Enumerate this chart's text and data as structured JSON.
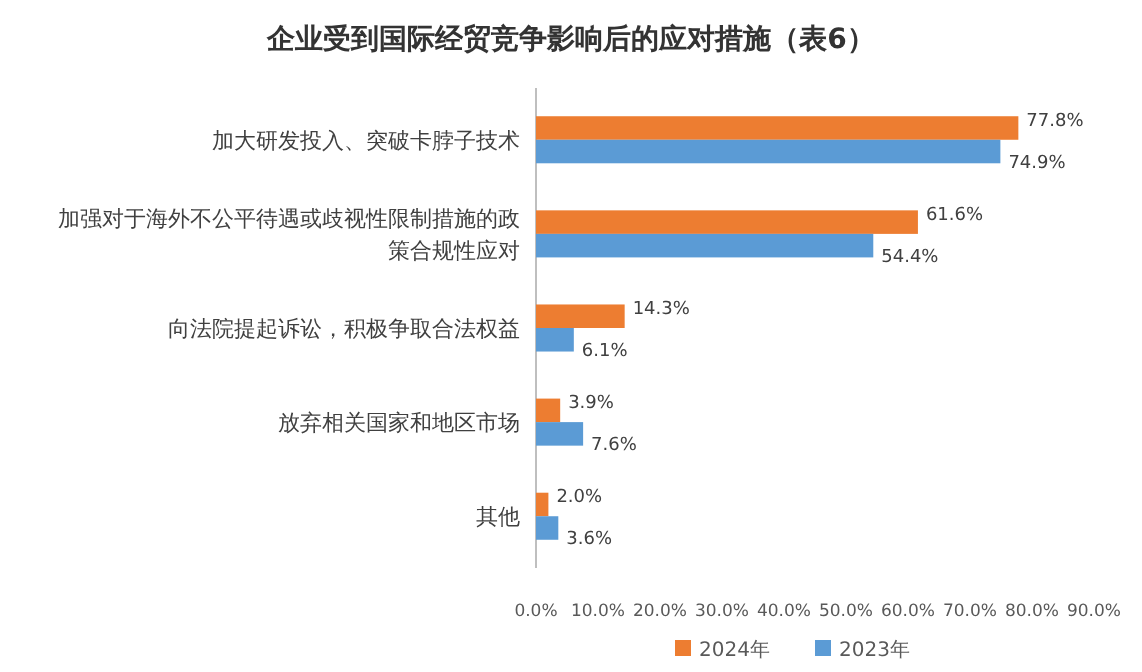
{
  "chart_data": {
    "type": "bar",
    "orientation": "horizontal",
    "title": "企业受到国际经贸竞争影响后的应对措施（表6）",
    "categories": [
      "加大研发投入、突破卡脖子技术",
      "加强对于海外不公平待遇或歧视性限制措施的政策合规性应对",
      "向法院提起诉讼，积极争取合法权益",
      "放弃相关国家和地区市场",
      "其他"
    ],
    "series": [
      {
        "name": "2024年",
        "color": "#ed7d31",
        "values": [
          77.8,
          61.6,
          14.3,
          3.9,
          2.0
        ],
        "value_labels": [
          "77.8%",
          "61.6%",
          "14.3%",
          "3.9%",
          "2.0%"
        ]
      },
      {
        "name": "2023年",
        "color": "#5b9bd5",
        "values": [
          74.9,
          54.4,
          6.1,
          7.6,
          3.6
        ],
        "value_labels": [
          "74.9%",
          "54.4%",
          "6.1%",
          "7.6%",
          "3.6%"
        ]
      }
    ],
    "xlim": [
      0,
      90
    ],
    "xticks": [
      {
        "value": 0,
        "label": "0.0%"
      },
      {
        "value": 10,
        "label": "10.0%"
      },
      {
        "value": 20,
        "label": "20.0%"
      },
      {
        "value": 30,
        "label": "30.0%"
      },
      {
        "value": 40,
        "label": "40.0%"
      },
      {
        "value": 50,
        "label": "50.0%"
      },
      {
        "value": 60,
        "label": "60.0%"
      },
      {
        "value": 70,
        "label": "70.0%"
      },
      {
        "value": 80,
        "label": "80.0%"
      },
      {
        "value": 90,
        "label": "90.0%"
      }
    ],
    "grid": false,
    "legend": "bottom"
  }
}
